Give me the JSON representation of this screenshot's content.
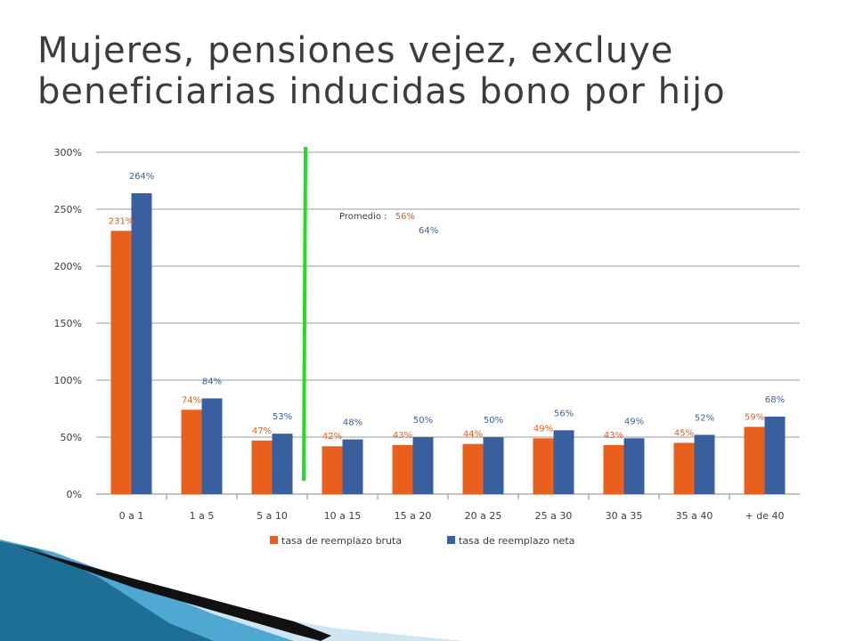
{
  "title_lines": [
    "Mujeres, pensiones vejez, excluye",
    "beneficiarias inducidas bono por hijo"
  ],
  "colors": {
    "bruta": "#e8601c",
    "neta": "#3a5f9e",
    "marker": "#22dd22",
    "text": "#3c3c3c"
  },
  "annotation": {
    "label": "Promedio :",
    "bruta_value": "56%",
    "neta_value": "64%"
  },
  "chart_data": {
    "type": "bar",
    "categories": [
      "0 a 1",
      "1 a 5",
      "5 a 10",
      "10 a 15",
      "15 a 20",
      "20 a 25",
      "25 a 30",
      "30 a 35",
      "35 a 40",
      "+ de 40"
    ],
    "series": [
      {
        "name": "tasa de reemplazo bruta",
        "values": [
          231,
          74,
          47,
          42,
          43,
          44,
          49,
          43,
          45,
          59
        ]
      },
      {
        "name": "tasa de reemplazo neta",
        "values": [
          264,
          84,
          53,
          48,
          50,
          50,
          56,
          49,
          52,
          68
        ]
      }
    ],
    "yticks": [
      0,
      50,
      100,
      150,
      200,
      250,
      300
    ],
    "ylim": [
      0,
      300
    ],
    "value_suffix": "%",
    "grid": true,
    "legend_position": "bottom",
    "marker_line_between": [
      "5 a 10",
      "10 a 15"
    ]
  }
}
